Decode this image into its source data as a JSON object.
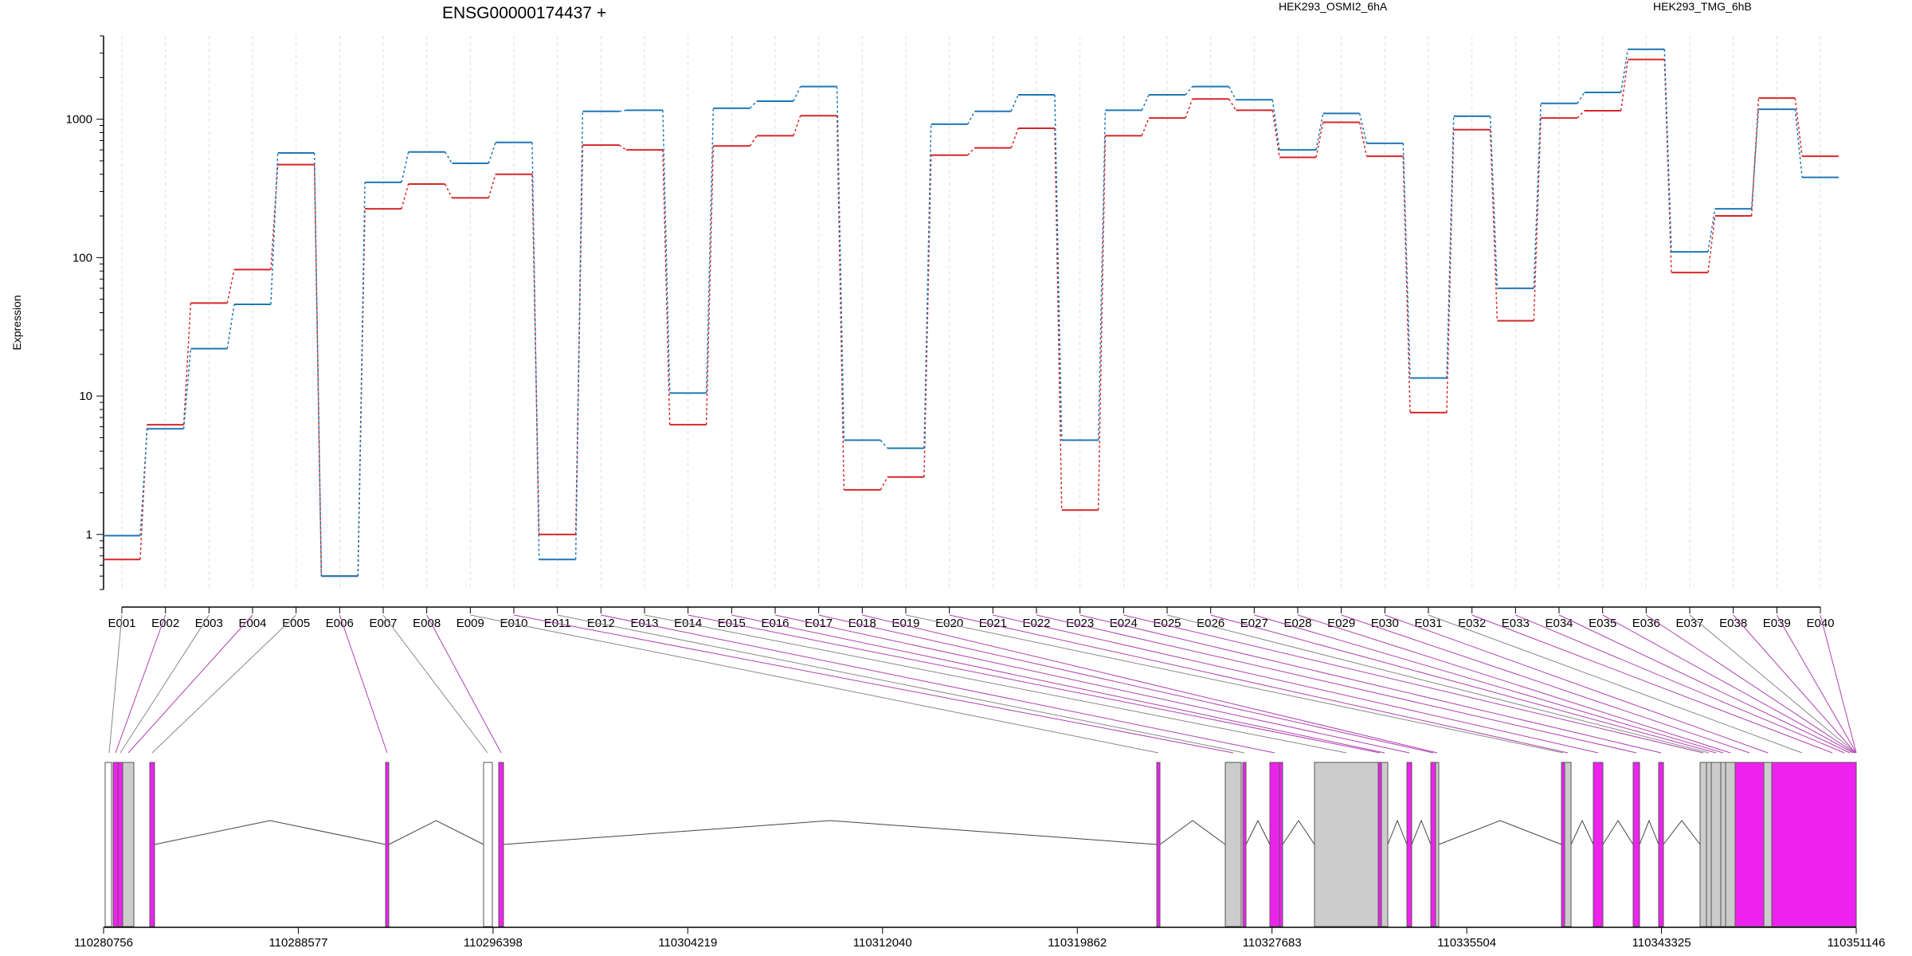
{
  "chart_data": {
    "type": "line",
    "title": "ENSG00000174437 +",
    "ylabel": "Expression",
    "xlabel": "",
    "yscale": "log",
    "ylim": [
      0.4,
      4000
    ],
    "y_ticks": [
      1,
      10,
      100,
      1000
    ],
    "y_tick_labels": [
      "1",
      "10",
      "100",
      "1000"
    ],
    "grid": "vertical dashed at exons",
    "categories": [
      "E001",
      "E002",
      "E003",
      "E004",
      "E005",
      "E006",
      "E007",
      "E008",
      "E009",
      "E010",
      "E011",
      "E012",
      "E013",
      "E014",
      "E015",
      "E016",
      "E017",
      "E018",
      "E019",
      "E020",
      "E021",
      "E022",
      "E023",
      "E024",
      "E025",
      "E026",
      "E027",
      "E028",
      "E029",
      "E030",
      "E031",
      "E032",
      "E033",
      "E034",
      "E035",
      "E036",
      "E037",
      "E038",
      "E039",
      "E040"
    ],
    "series": [
      {
        "name": "HEK293_OSMI2_6hA",
        "color": "#d62728",
        "values": [
          0.66,
          6.2,
          47,
          82,
          470,
          0.5,
          225,
          340,
          270,
          400,
          1.0,
          650,
          600,
          6.2,
          640,
          760,
          1060,
          2.1,
          2.6,
          550,
          620,
          860,
          1.5,
          760,
          1020,
          1400,
          1160,
          530,
          950,
          540,
          7.6,
          840,
          35,
          1020,
          1150,
          2700,
          78,
          200,
          1420,
          540
        ]
      },
      {
        "name": "HEK293_TMG_6hB",
        "color": "#1f77b4",
        "values": [
          0.98,
          5.8,
          22,
          46,
          570,
          0.5,
          350,
          580,
          480,
          680,
          0.66,
          1140,
          1160,
          10.5,
          1200,
          1350,
          1720,
          4.8,
          4.2,
          920,
          1140,
          1500,
          4.8,
          1160,
          1500,
          1720,
          1380,
          600,
          1100,
          670,
          13.5,
          1050,
          60,
          1300,
          1560,
          3200,
          110,
          225,
          1180,
          380
        ]
      }
    ],
    "gene_model": {
      "x_ticks": [
        110280756,
        110288577,
        110296398,
        110304219,
        110312040,
        110319862,
        110327683,
        110335504,
        110343325,
        110351146
      ],
      "x_tick_labels": [
        "110280756",
        "110288577",
        "110296398",
        "110304219",
        "110312040",
        "110319862",
        "110327683",
        "110335504",
        "110343325",
        "110351146"
      ],
      "range": [
        110280756,
        110351146
      ],
      "colors": {
        "tested": "#ee22ee",
        "untested": "#cccccc",
        "other": "#ffffff"
      }
    }
  }
}
